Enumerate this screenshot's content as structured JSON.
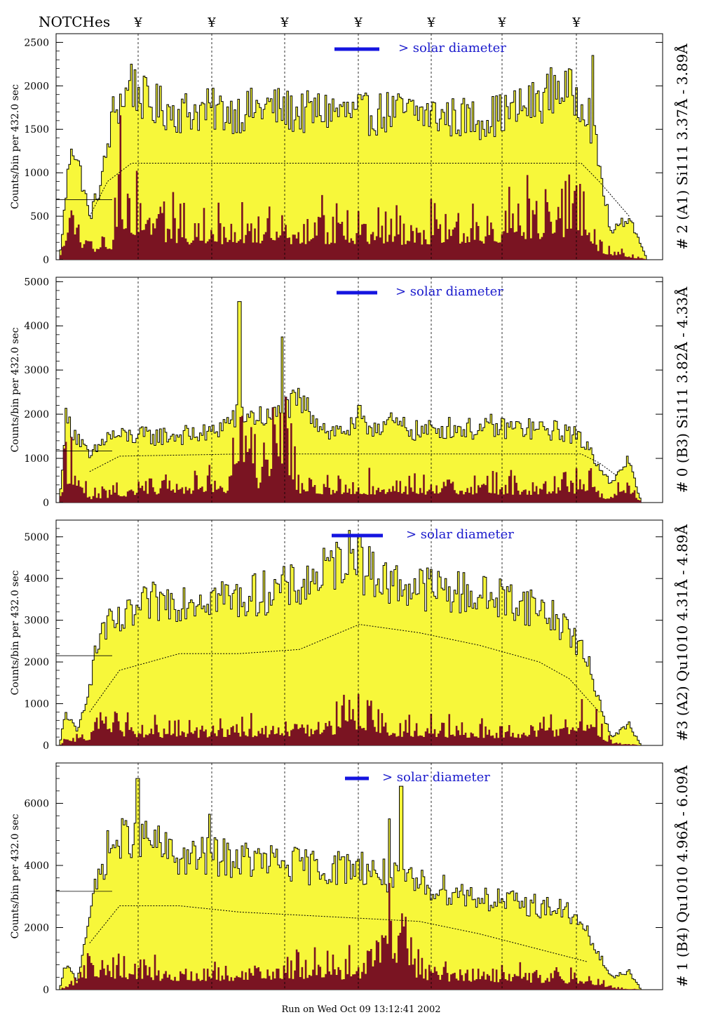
{
  "header": {
    "notches_label": "NOTCHes",
    "notch_symbol": "¥",
    "notch_count": 7
  },
  "footer": {
    "run_text": "Run on Wed Oct 09 13:12:41 2002"
  },
  "colors": {
    "fill_yellow": "#f7f73a",
    "fill_maroon": "#7a1422",
    "outline": "#000000",
    "annotation_blue": "#1a1acc",
    "marker_bar": "#1515e0"
  },
  "chart_data": [
    {
      "type": "area",
      "panel_title": "# 2 (A1) Si111  3.37Å - 3.89Å",
      "ylabel": "Counts/bin per    432.0 sec",
      "yticks": [
        0,
        500,
        1000,
        1500,
        2000,
        2500
      ],
      "ylim": [
        0,
        2600
      ],
      "marker_label": "> solar diameter",
      "profile": [
        [
          0,
          0
        ],
        [
          0.02,
          1400
        ],
        [
          0.04,
          850
        ],
        [
          0.05,
          480
        ],
        [
          0.07,
          900
        ],
        [
          0.09,
          1700
        ],
        [
          0.12,
          2000
        ],
        [
          0.15,
          1780
        ],
        [
          0.2,
          1700
        ],
        [
          0.25,
          1720
        ],
        [
          0.3,
          1700
        ],
        [
          0.35,
          1760
        ],
        [
          0.4,
          1680
        ],
        [
          0.45,
          1720
        ],
        [
          0.5,
          1660
        ],
        [
          0.55,
          1700
        ],
        [
          0.6,
          1690
        ],
        [
          0.65,
          1640
        ],
        [
          0.7,
          1620
        ],
        [
          0.75,
          1700
        ],
        [
          0.8,
          1820
        ],
        [
          0.83,
          2000
        ],
        [
          0.88,
          1800
        ],
        [
          0.9,
          1100
        ],
        [
          0.92,
          300
        ],
        [
          0.95,
          500
        ],
        [
          0.98,
          0
        ]
      ],
      "spikes": [
        [
          0.12,
          2250
        ],
        [
          0.89,
          2350
        ],
        [
          0.5,
          1900
        ]
      ],
      "inner_profile": [
        [
          0,
          0
        ],
        [
          0.02,
          800
        ],
        [
          0.04,
          200
        ],
        [
          0.09,
          300
        ],
        [
          0.1,
          1100
        ],
        [
          0.13,
          700
        ],
        [
          0.2,
          500
        ],
        [
          0.35,
          500
        ],
        [
          0.5,
          480
        ],
        [
          0.7,
          500
        ],
        [
          0.8,
          650
        ],
        [
          0.87,
          800
        ],
        [
          0.9,
          200
        ],
        [
          0.98,
          0
        ]
      ],
      "dashed": [
        [
          0.05,
          500
        ],
        [
          0.08,
          900
        ],
        [
          0.12,
          1110
        ],
        [
          0.3,
          1110
        ],
        [
          0.5,
          1110
        ],
        [
          0.7,
          1110
        ],
        [
          0.87,
          1110
        ],
        [
          0.9,
          900
        ],
        [
          0.95,
          500
        ]
      ]
    },
    {
      "type": "area",
      "panel_title": "# 0 (B3) Si111  3.82Å - 4.33Å",
      "ylabel": "Counts/bin per    432.0 sec",
      "yticks": [
        0,
        1000,
        2000,
        3000,
        4000,
        5000
      ],
      "ylim": [
        0,
        5100
      ],
      "marker_label": "> solar diameter",
      "profile": [
        [
          0,
          0
        ],
        [
          0.01,
          1900
        ],
        [
          0.03,
          1500
        ],
        [
          0.05,
          1000
        ],
        [
          0.08,
          1500
        ],
        [
          0.15,
          1500
        ],
        [
          0.25,
          1550
        ],
        [
          0.3,
          2000
        ],
        [
          0.35,
          1900
        ],
        [
          0.4,
          2300
        ],
        [
          0.45,
          1600
        ],
        [
          0.5,
          1700
        ],
        [
          0.55,
          1800
        ],
        [
          0.6,
          1600
        ],
        [
          0.65,
          1700
        ],
        [
          0.7,
          1650
        ],
        [
          0.75,
          1700
        ],
        [
          0.8,
          1650
        ],
        [
          0.85,
          1600
        ],
        [
          0.88,
          1300
        ],
        [
          0.92,
          400
        ],
        [
          0.95,
          1000
        ],
        [
          0.97,
          0
        ]
      ],
      "spikes": [
        [
          0.3,
          4550
        ],
        [
          0.37,
          3750
        ],
        [
          0.5,
          2200
        ],
        [
          0.72,
          2000
        ]
      ],
      "inner_profile": [
        [
          0,
          0
        ],
        [
          0.01,
          1300
        ],
        [
          0.05,
          200
        ],
        [
          0.15,
          500
        ],
        [
          0.28,
          600
        ],
        [
          0.3,
          2800
        ],
        [
          0.33,
          800
        ],
        [
          0.37,
          2600
        ],
        [
          0.4,
          500
        ],
        [
          0.6,
          500
        ],
        [
          0.8,
          500
        ],
        [
          0.88,
          600
        ],
        [
          0.92,
          100
        ],
        [
          0.95,
          600
        ],
        [
          0.97,
          0
        ]
      ],
      "dashed": [
        [
          0.05,
          700
        ],
        [
          0.1,
          1050
        ],
        [
          0.3,
          1100
        ],
        [
          0.5,
          1100
        ],
        [
          0.7,
          1100
        ],
        [
          0.87,
          1100
        ],
        [
          0.9,
          900
        ],
        [
          0.93,
          600
        ]
      ]
    },
    {
      "type": "area",
      "panel_title": "#3 (A2) Qu1010  4.31Å - 4.89Å",
      "ylabel": "Counts/bin per    432.0 sec",
      "yticks": [
        0,
        1000,
        2000,
        3000,
        4000,
        5000
      ],
      "ylim": [
        0,
        5400
      ],
      "marker_label": "> solar diameter",
      "profile": [
        [
          0,
          0
        ],
        [
          0.01,
          800
        ],
        [
          0.03,
          300
        ],
        [
          0.05,
          1500
        ],
        [
          0.07,
          2800
        ],
        [
          0.1,
          2900
        ],
        [
          0.15,
          3400
        ],
        [
          0.2,
          3500
        ],
        [
          0.25,
          3600
        ],
        [
          0.3,
          3500
        ],
        [
          0.35,
          3700
        ],
        [
          0.4,
          3800
        ],
        [
          0.45,
          4200
        ],
        [
          0.48,
          4600
        ],
        [
          0.5,
          4300
        ],
        [
          0.55,
          3900
        ],
        [
          0.6,
          3800
        ],
        [
          0.65,
          3700
        ],
        [
          0.7,
          3600
        ],
        [
          0.75,
          3500
        ],
        [
          0.8,
          3300
        ],
        [
          0.85,
          2800
        ],
        [
          0.88,
          2000
        ],
        [
          0.92,
          200
        ],
        [
          0.95,
          500
        ],
        [
          0.97,
          0
        ]
      ],
      "spikes": [
        [
          0.5,
          5000
        ],
        [
          0.49,
          4700
        ]
      ],
      "inner_profile": [
        [
          0,
          0
        ],
        [
          0.01,
          200
        ],
        [
          0.05,
          300
        ],
        [
          0.07,
          1100
        ],
        [
          0.1,
          600
        ],
        [
          0.15,
          500
        ],
        [
          0.3,
          500
        ],
        [
          0.45,
          600
        ],
        [
          0.48,
          1100
        ],
        [
          0.55,
          600
        ],
        [
          0.7,
          500
        ],
        [
          0.85,
          500
        ],
        [
          0.88,
          1000
        ],
        [
          0.92,
          100
        ],
        [
          0.97,
          0
        ]
      ],
      "dashed": [
        [
          0.05,
          800
        ],
        [
          0.1,
          1800
        ],
        [
          0.2,
          2200
        ],
        [
          0.3,
          2200
        ],
        [
          0.4,
          2300
        ],
        [
          0.5,
          2900
        ],
        [
          0.6,
          2700
        ],
        [
          0.7,
          2400
        ],
        [
          0.8,
          2000
        ],
        [
          0.85,
          1600
        ],
        [
          0.9,
          800
        ]
      ]
    },
    {
      "type": "area",
      "panel_title": "# 1 (B4) Qu1010 4.96Å - 6.09Å",
      "ylabel": "Counts/bin per    432.0 sec",
      "yticks": [
        0,
        2000,
        4000,
        6000
      ],
      "ylim": [
        0,
        7300
      ],
      "marker_label": "> solar diameter",
      "profile": [
        [
          0,
          0
        ],
        [
          0.01,
          800
        ],
        [
          0.03,
          300
        ],
        [
          0.05,
          2500
        ],
        [
          0.08,
          4500
        ],
        [
          0.12,
          5000
        ],
        [
          0.15,
          4800
        ],
        [
          0.2,
          4200
        ],
        [
          0.25,
          4300
        ],
        [
          0.3,
          4200
        ],
        [
          0.35,
          4100
        ],
        [
          0.4,
          4000
        ],
        [
          0.45,
          3900
        ],
        [
          0.5,
          4000
        ],
        [
          0.55,
          3600
        ],
        [
          0.6,
          3400
        ],
        [
          0.65,
          3200
        ],
        [
          0.7,
          3000
        ],
        [
          0.75,
          2800
        ],
        [
          0.8,
          2700
        ],
        [
          0.85,
          2500
        ],
        [
          0.88,
          1800
        ],
        [
          0.92,
          400
        ],
        [
          0.95,
          600
        ],
        [
          0.97,
          0
        ]
      ],
      "spikes": [
        [
          0.13,
          6800
        ],
        [
          0.57,
          6550
        ],
        [
          0.25,
          5650
        ],
        [
          0.55,
          5500
        ]
      ],
      "inner_profile": [
        [
          0,
          0
        ],
        [
          0.02,
          300
        ],
        [
          0.05,
          1200
        ],
        [
          0.1,
          800
        ],
        [
          0.2,
          800
        ],
        [
          0.3,
          800
        ],
        [
          0.4,
          1000
        ],
        [
          0.5,
          900
        ],
        [
          0.55,
          3000
        ],
        [
          0.6,
          800
        ],
        [
          0.7,
          700
        ],
        [
          0.8,
          600
        ],
        [
          0.88,
          500
        ],
        [
          0.92,
          100
        ],
        [
          0.97,
          0
        ]
      ],
      "dashed": [
        [
          0.05,
          1500
        ],
        [
          0.1,
          2700
        ],
        [
          0.2,
          2700
        ],
        [
          0.3,
          2500
        ],
        [
          0.4,
          2400
        ],
        [
          0.5,
          2300
        ],
        [
          0.6,
          2200
        ],
        [
          0.7,
          1800
        ],
        [
          0.8,
          1300
        ],
        [
          0.88,
          900
        ]
      ]
    }
  ]
}
